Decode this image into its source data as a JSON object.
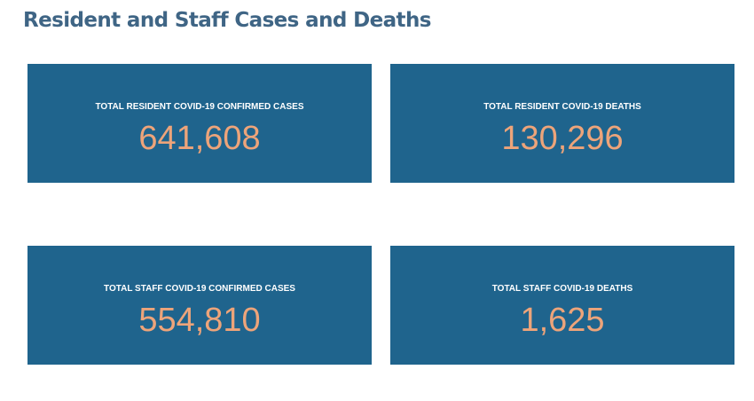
{
  "page": {
    "title": "Resident and Staff Cases and Deaths"
  },
  "colors": {
    "title": "#3f6585",
    "card_background": "#1f648d",
    "label": "#ffffff",
    "value": "#eda47a"
  },
  "cards": [
    {
      "label": "TOTAL RESIDENT COVID-19 CONFIRMED CASES",
      "value": "641,608"
    },
    {
      "label": "TOTAL RESIDENT COVID-19 DEATHS",
      "value": "130,296"
    },
    {
      "label": "TOTAL STAFF COVID-19 CONFIRMED CASES",
      "value": "554,810"
    },
    {
      "label": "TOTAL STAFF COVID-19 DEATHS",
      "value": "1,625"
    }
  ]
}
